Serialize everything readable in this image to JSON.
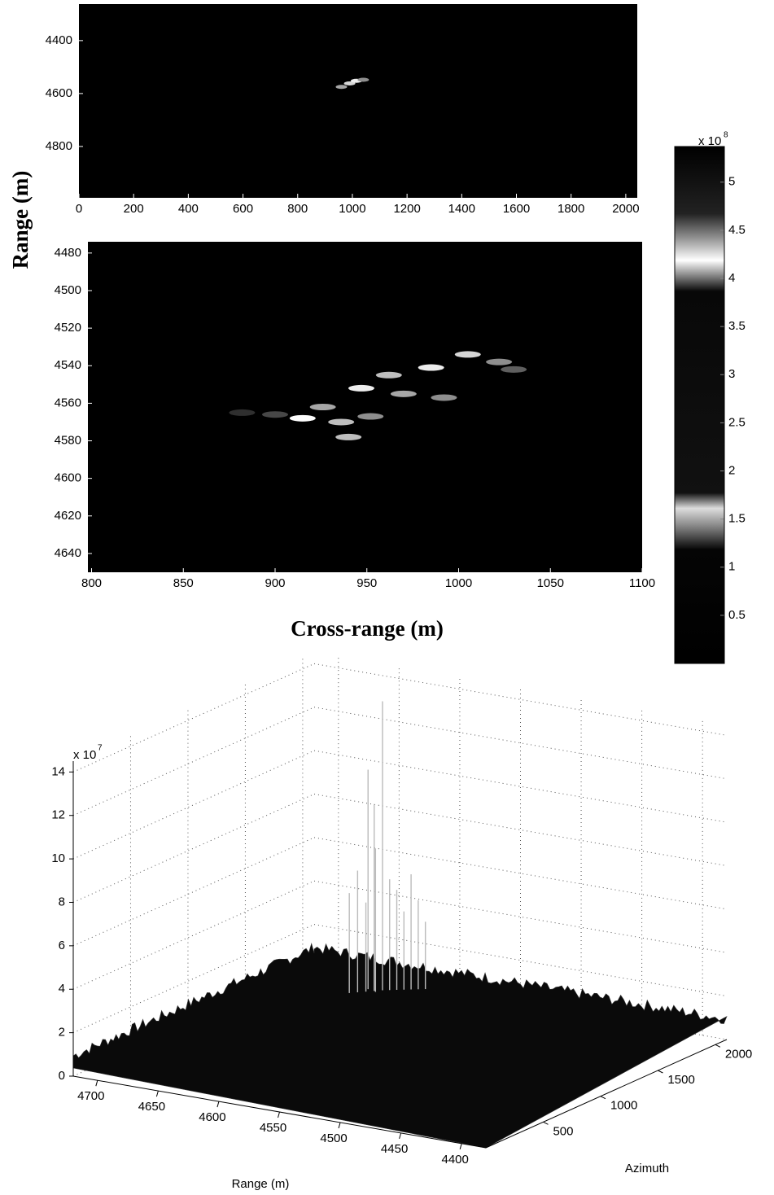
{
  "chart_data": [
    {
      "type": "heatmap",
      "reverse_y": true,
      "xlim": [
        0,
        2042
      ],
      "ylim": [
        4262,
        4994
      ],
      "xticks": [
        0,
        200,
        400,
        600,
        800,
        1000,
        1200,
        1400,
        1600,
        1800,
        2000
      ],
      "yticks": [
        4400,
        4600,
        4800
      ],
      "points": {
        "x": [
          960,
          990,
          1015,
          1040
        ],
        "y": [
          4575,
          4562,
          4552,
          4548
        ],
        "values": [
          3.5,
          4.5,
          5,
          3
        ]
      }
    },
    {
      "type": "heatmap",
      "reverse_y": true,
      "ylabel": "Range (m)",
      "xlabel": "Cross-range (m)",
      "xlim": [
        798,
        1100
      ],
      "ylim": [
        4474,
        4650
      ],
      "xticks": [
        800,
        850,
        900,
        950,
        1000,
        1050,
        1100
      ],
      "yticks": [
        4480,
        4500,
        4520,
        4540,
        4560,
        4580,
        4600,
        4620,
        4640
      ],
      "points": {
        "x": [
          1005,
          1022,
          985,
          962,
          947,
          970,
          992,
          926,
          915,
          936,
          952,
          940,
          900,
          882,
          1030
        ],
        "y": [
          4534,
          4538,
          4541,
          4545,
          4552,
          4555,
          4557,
          4562,
          4568,
          4570,
          4567,
          4578,
          4566,
          4565,
          4542
        ],
        "values": [
          4.5,
          3,
          5,
          4,
          5,
          3.5,
          3,
          3.5,
          5.3,
          4,
          3,
          4,
          1.5,
          1,
          2
        ]
      }
    },
    {
      "type": "colorbar",
      "clim": [
        0,
        5.37
      ],
      "ticks": [
        0.5,
        1,
        1.5,
        2,
        2.5,
        3,
        3.5,
        4,
        4.5,
        5
      ],
      "multiplier": "x 10",
      "exponent": "8"
    },
    {
      "type": "surface3d",
      "grid": true,
      "multiplier": "x 10",
      "exponent": "7",
      "xlabel": "Range (m)",
      "ylabel": "Azimuth",
      "xlim": [
        4380,
        4720
      ],
      "xticks": [
        4400,
        4450,
        4500,
        4550,
        4600,
        4650,
        4700
      ],
      "ylim": [
        0,
        2100
      ],
      "yticks": [
        500,
        1000,
        1500,
        2000
      ],
      "zlim": [
        0,
        14.5
      ],
      "zticks": [
        0,
        2,
        4,
        6,
        8,
        10,
        12,
        14
      ],
      "peaks": {
        "x": [
          4640,
          4636,
          4632,
          4628,
          4624,
          4620,
          4616,
          4612,
          4608,
          4604,
          4600,
          4634,
          4626
        ],
        "y": [
          1560,
          1590,
          1620,
          1650,
          1680,
          1700,
          1720,
          1740,
          1760,
          1780,
          1800,
          1660,
          1640
        ],
        "values": [
          5.5,
          6.5,
          5,
          9.5,
          14.2,
          6,
          5.5,
          4.5,
          6.2,
          5,
          4,
          11,
          7.5
        ]
      }
    }
  ]
}
